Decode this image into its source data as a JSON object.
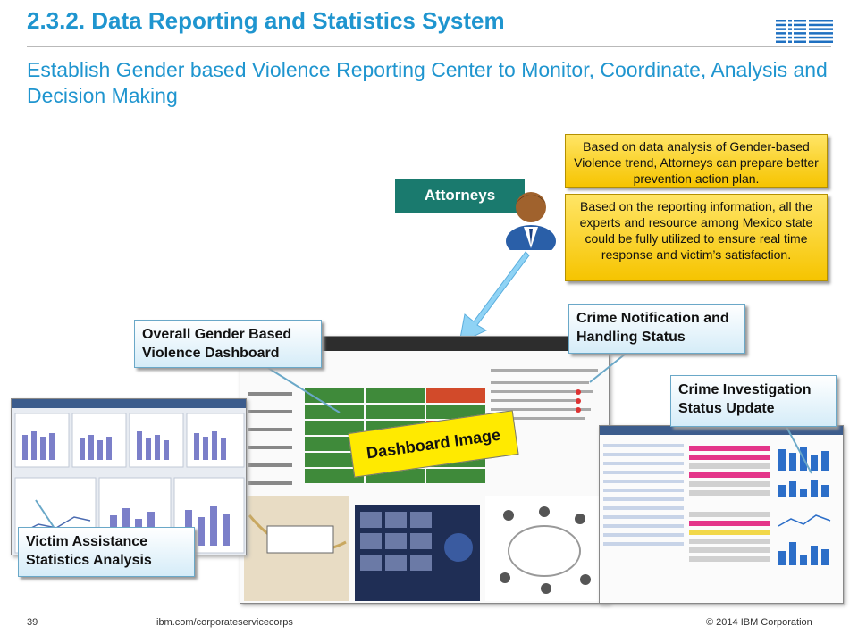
{
  "header": {
    "title": "2.3.2. Data Reporting and Statistics System",
    "subtitle": "Establish Gender based Violence Reporting Center to Monitor, Coordinate, Analysis and Decision Making",
    "logo_text": "IBM"
  },
  "callouts": {
    "data_analysis": "Based on data analysis of Gender-based Violence trend, Attorneys can prepare better prevention action plan.",
    "reporting_info": "Based on the reporting information, all the experts and resource among Mexico state could be fully utilized to ensure real time response and victim’s satisfaction.",
    "attorneys": "Attorneys",
    "overall_dashboard": "Overall Gender Based Violence Dashboard",
    "crime_notification": "Crime Notification and Handling Status",
    "crime_investigation": "Crime Investigation Status Update",
    "victim_assistance": "Victim Assistance Statistics Analysis",
    "dashboard_image": "Dashboard Image"
  },
  "footer": {
    "page": "39",
    "url": "ibm.com/corporateservicecorps",
    "copyright": "© 2014 IBM Corporation"
  },
  "colors": {
    "title_blue": "#1f95cf",
    "attorneys_green": "#1a7a6e",
    "callout_yellow": "#f6c400",
    "callout_blue": "#d5ecf8",
    "label_yellow": "#ffea00"
  }
}
